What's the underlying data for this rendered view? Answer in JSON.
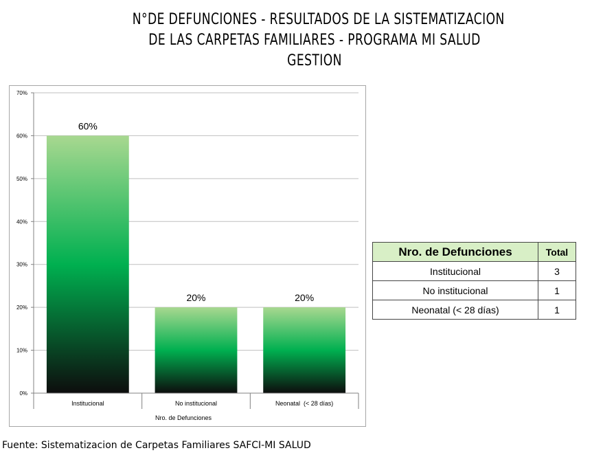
{
  "title": {
    "line1": "N°DE DEFUNCIONES - RESULTADOS DE LA SISTEMATIZACION",
    "line2": "DE LAS CARPETAS FAMILIARES - PROGRAMA MI SALUD",
    "line3": "GESTION"
  },
  "chart_data": {
    "type": "bar",
    "categories": [
      "Institucional",
      "No institucional",
      "Neonatal  (< 28 días)"
    ],
    "values": [
      60,
      20,
      20
    ],
    "value_labels": [
      "60%",
      "20%",
      "20%"
    ],
    "xlabel": "Nro. de Defunciones",
    "ylabel": "",
    "ylim": [
      0,
      70
    ],
    "yticks": [
      0,
      10,
      20,
      30,
      40,
      50,
      60,
      70
    ],
    "ytick_labels": [
      "0%",
      "10%",
      "20%",
      "30%",
      "40%",
      "50%",
      "60%",
      "70%"
    ],
    "grid": true,
    "bar_gradient": [
      "#a8d890",
      "#00b050",
      "#0d0d0d"
    ]
  },
  "table": {
    "headers": [
      "Nro. de Defunciones",
      "Total"
    ],
    "rows": [
      [
        "Institucional",
        "3"
      ],
      [
        "No institucional",
        "1"
      ],
      [
        "Neonatal  (< 28 días)",
        "1"
      ]
    ],
    "header_bg": "#d8efc6"
  },
  "source": "Fuente: Sistematizacion de Carpetas Familiares SAFCI-MI SALUD"
}
